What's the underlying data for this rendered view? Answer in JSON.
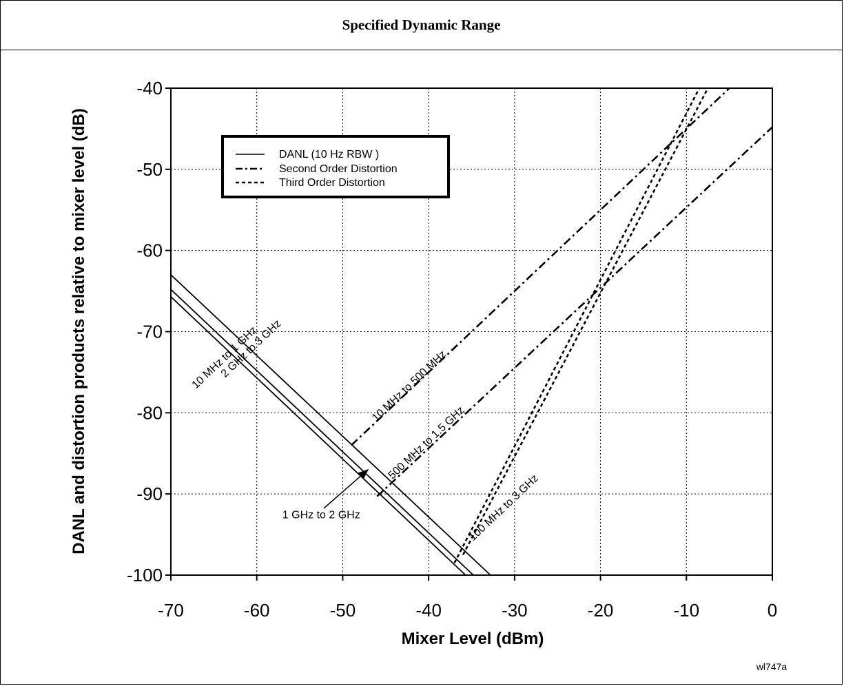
{
  "figure": {
    "title": "Specified Dynamic Range",
    "figure_id": "wl747a"
  },
  "chart_data": {
    "type": "line",
    "title": "",
    "xlabel": "Mixer Level (dBm)",
    "ylabel": "DANL and distortion products relative to mixer level (dB)",
    "xlim": [
      -70,
      0
    ],
    "ylim": [
      -100,
      -40
    ],
    "xticks": [
      -70,
      -60,
      -50,
      -40,
      -30,
      -20,
      -10,
      0
    ],
    "yticks": [
      -40,
      -50,
      -60,
      -70,
      -80,
      -90,
      -100
    ],
    "grid": true,
    "legend_position": "top-left",
    "legend": [
      {
        "label": "DANL (10 Hz RBW )",
        "style": "solid"
      },
      {
        "label": "Second Order Distortion",
        "style": "dashdot"
      },
      {
        "label": "Third Order Distortion",
        "style": "dashed"
      }
    ],
    "series": [
      {
        "name": "2 GHz to 3 GHz",
        "group": "DANL (10 Hz RBW )",
        "style": "solid",
        "x": [
          -70,
          -32.8
        ],
        "y": [
          -63.0,
          -100.0
        ]
      },
      {
        "name": "1 GHz to 2 GHz",
        "group": "DANL (10 Hz RBW )",
        "style": "solid",
        "x": [
          -70,
          -34.8
        ],
        "y": [
          -64.8,
          -100.0
        ]
      },
      {
        "name": "10 MHz to 1 GHz",
        "group": "DANL (10 Hz RBW )",
        "style": "solid",
        "x": [
          -70,
          -35.7
        ],
        "y": [
          -65.7,
          -100.0
        ]
      },
      {
        "name": "10 MHz to 500 MHz",
        "group": "Second Order Distortion",
        "style": "dashdot",
        "x": [
          -49,
          -5
        ],
        "y": [
          -84,
          -40
        ]
      },
      {
        "name": "500 MHz to 1.5 GHz",
        "group": "Second Order Distortion",
        "style": "dashdot",
        "x": [
          -46,
          0
        ],
        "y": [
          -90.3,
          -44.8
        ]
      },
      {
        "name": "100 MHz to 3 GHz",
        "group": "Third Order Distortion",
        "style": "dashed",
        "x": [
          -37,
          -8.5
        ],
        "y": [
          -98.5,
          -40
        ]
      },
      {
        "name": "",
        "group": "Third Order Distortion",
        "style": "dashed",
        "x": [
          -36,
          -7.5
        ],
        "y": [
          -97.5,
          -40
        ]
      }
    ],
    "annotations": [
      {
        "text": "2 GHz to 3 GHz",
        "x": -60.4,
        "y": -72.4
      },
      {
        "text": "10 MHz to 1 GHz",
        "x": -63.5,
        "y": -73.5
      },
      {
        "text": "10 MHz to 500 MHz",
        "x": -42,
        "y": -77
      },
      {
        "text": "500 MHz to 1.5 GHz",
        "x": -40,
        "y": -84
      },
      {
        "text": "100 MHz to 3 GHz",
        "x": -31,
        "y": -92
      },
      {
        "text": "1 GHz to 2 GHz",
        "x": -52.5,
        "y": -93
      }
    ]
  }
}
